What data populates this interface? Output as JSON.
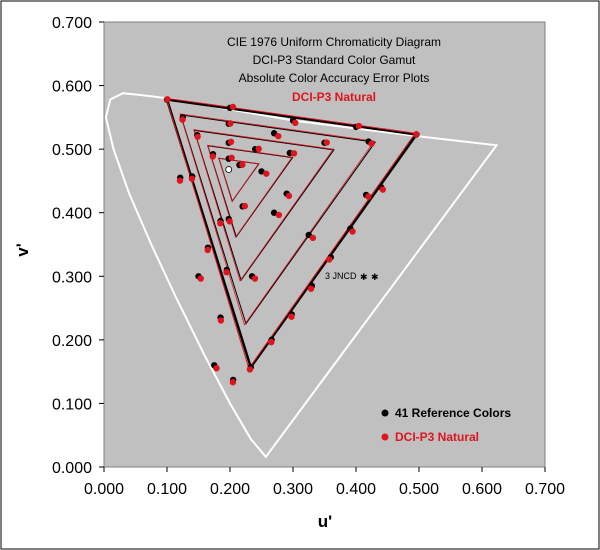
{
  "chart_data": {
    "type": "scatter",
    "title_lines": [
      "CIE 1976 Uniform Chromaticity Diagram",
      "DCI-P3 Standard Color Gamut",
      "Absolute Color Accuracy Error Plots"
    ],
    "subtitle": "DCI-P3 Natural",
    "xlabel": "u'",
    "ylabel": "v'",
    "xlim": [
      0,
      0.7
    ],
    "ylim": [
      0,
      0.7
    ],
    "xticks": [
      "0.000",
      "0.100",
      "0.200",
      "0.300",
      "0.400",
      "0.500",
      "0.600",
      "0.700"
    ],
    "yticks": [
      "0.000",
      "0.100",
      "0.200",
      "0.300",
      "0.400",
      "0.500",
      "0.600",
      "0.700"
    ],
    "grid": false,
    "legend_position": "bottom-right",
    "annotation": "3 JNCD",
    "colors": {
      "background": "#c0c0c0",
      "locus": "#ffffff",
      "reference": "#000000",
      "measured": "#e0141e",
      "subtitle": "#e0141e"
    },
    "spectral_locus": [
      [
        0.257,
        0.016
      ],
      [
        0.233,
        0.044
      ],
      [
        0.2,
        0.1
      ],
      [
        0.16,
        0.175
      ],
      [
        0.115,
        0.265
      ],
      [
        0.075,
        0.35
      ],
      [
        0.04,
        0.43
      ],
      [
        0.015,
        0.5
      ],
      [
        0.003,
        0.55
      ],
      [
        0.01,
        0.578
      ],
      [
        0.03,
        0.588
      ],
      [
        0.06,
        0.585
      ],
      [
        0.1,
        0.58
      ],
      [
        0.3,
        0.545
      ],
      [
        0.5,
        0.52
      ],
      [
        0.623,
        0.506
      ]
    ],
    "series": [
      {
        "name": "41 Reference Colors",
        "color": "#000000",
        "x": [
          0.1,
          0.2,
          0.3,
          0.4,
          0.496,
          0.125,
          0.198,
          0.27,
          0.35,
          0.42,
          0.148,
          0.198,
          0.24,
          0.295,
          0.173,
          0.198,
          0.215,
          0.25,
          0.185,
          0.198,
          0.22,
          0.44,
          0.416,
          0.391,
          0.36,
          0.33,
          0.298,
          0.266,
          0.233,
          0.205,
          0.175,
          0.195,
          0.27,
          0.325,
          0.29,
          0.185,
          0.235,
          0.165,
          0.15,
          0.14,
          0.121
        ],
        "y": [
          0.578,
          0.565,
          0.545,
          0.535,
          0.523,
          0.55,
          0.54,
          0.525,
          0.51,
          0.512,
          0.522,
          0.51,
          0.5,
          0.494,
          0.492,
          0.485,
          0.475,
          0.465,
          0.387,
          0.39,
          0.41,
          0.44,
          0.428,
          0.375,
          0.33,
          0.285,
          0.24,
          0.2,
          0.157,
          0.137,
          0.16,
          0.31,
          0.4,
          0.365,
          0.43,
          0.235,
          0.3,
          0.345,
          0.3,
          0.457,
          0.455
        ]
      },
      {
        "name": "DCI-P3 Natural",
        "color": "#e0141e",
        "x": [
          0.099,
          0.203,
          0.302,
          0.403,
          0.494,
          0.123,
          0.199,
          0.275,
          0.352,
          0.423,
          0.147,
          0.2,
          0.244,
          0.3,
          0.171,
          0.201,
          0.218,
          0.256,
          0.183,
          0.198,
          0.222,
          0.441,
          0.418,
          0.393,
          0.356,
          0.327,
          0.296,
          0.264,
          0.23,
          0.203,
          0.177,
          0.193,
          0.276,
          0.33,
          0.292,
          0.184,
          0.238,
          0.163,
          0.152,
          0.138,
          0.119
        ],
        "y": [
          0.58,
          0.568,
          0.543,
          0.538,
          0.525,
          0.548,
          0.542,
          0.522,
          0.512,
          0.51,
          0.521,
          0.513,
          0.502,
          0.495,
          0.49,
          0.488,
          0.477,
          0.463,
          0.385,
          0.388,
          0.412,
          0.438,
          0.427,
          0.372,
          0.328,
          0.282,
          0.238,
          0.198,
          0.155,
          0.135,
          0.157,
          0.308,
          0.398,
          0.362,
          0.428,
          0.232,
          0.298,
          0.343,
          0.298,
          0.455,
          0.452
        ]
      }
    ]
  }
}
